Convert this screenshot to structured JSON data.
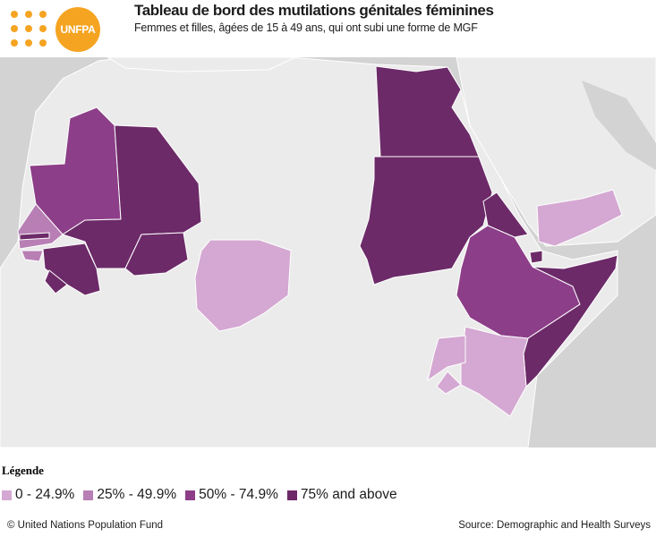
{
  "header": {
    "logo_text": "UNFPA",
    "title": "Tableau de bord des mutilations génitales féminines",
    "subtitle": "Femmes et filles, âgées de 15 à 49 ans, qui ont subi une forme de MGF"
  },
  "colors": {
    "band_0_24": "#d4a8d2",
    "band_25_49": "#b87fb5",
    "band_50_74": "#8c3e88",
    "band_75_plus": "#6c2a68",
    "no_data_land": "#ebebeb",
    "background": "#d3d3d3",
    "logo": "#f5a422"
  },
  "map": {
    "regions": [
      {
        "name": "Mauritania",
        "band": "band_50_74"
      },
      {
        "name": "Mali",
        "band": "band_75_plus"
      },
      {
        "name": "Senegal",
        "band": "band_25_49"
      },
      {
        "name": "Gambia",
        "band": "band_75_plus"
      },
      {
        "name": "Guinea-Bissau",
        "band": "band_25_49"
      },
      {
        "name": "Guinea",
        "band": "band_75_plus"
      },
      {
        "name": "Sierra Leone",
        "band": "band_75_plus"
      },
      {
        "name": "Burkina Faso",
        "band": "band_75_plus"
      },
      {
        "name": "Nigeria",
        "band": "band_0_24"
      },
      {
        "name": "Egypt",
        "band": "band_75_plus"
      },
      {
        "name": "Sudan",
        "band": "band_75_plus"
      },
      {
        "name": "Eritrea",
        "band": "band_75_plus"
      },
      {
        "name": "Djibouti",
        "band": "band_75_plus"
      },
      {
        "name": "Ethiopia",
        "band": "band_50_74"
      },
      {
        "name": "Somalia",
        "band": "band_75_plus"
      },
      {
        "name": "Kenya",
        "band": "band_0_24"
      },
      {
        "name": "Uganda",
        "band": "band_0_24"
      },
      {
        "name": "Tanzania",
        "band": "band_0_24"
      },
      {
        "name": "Yemen",
        "band": "band_0_24"
      }
    ]
  },
  "legend": {
    "title": "Légende",
    "items": [
      {
        "label": "0 - 24.9%",
        "band": "band_0_24"
      },
      {
        "label": "25% - 49.9%",
        "band": "band_25_49"
      },
      {
        "label": "50% - 74.9%",
        "band": "band_50_74"
      },
      {
        "label": "75% and above",
        "band": "band_75_plus"
      }
    ]
  },
  "footer": {
    "copyright": "© United Nations Population Fund",
    "source": "Source: Demographic and Health Surveys"
  }
}
